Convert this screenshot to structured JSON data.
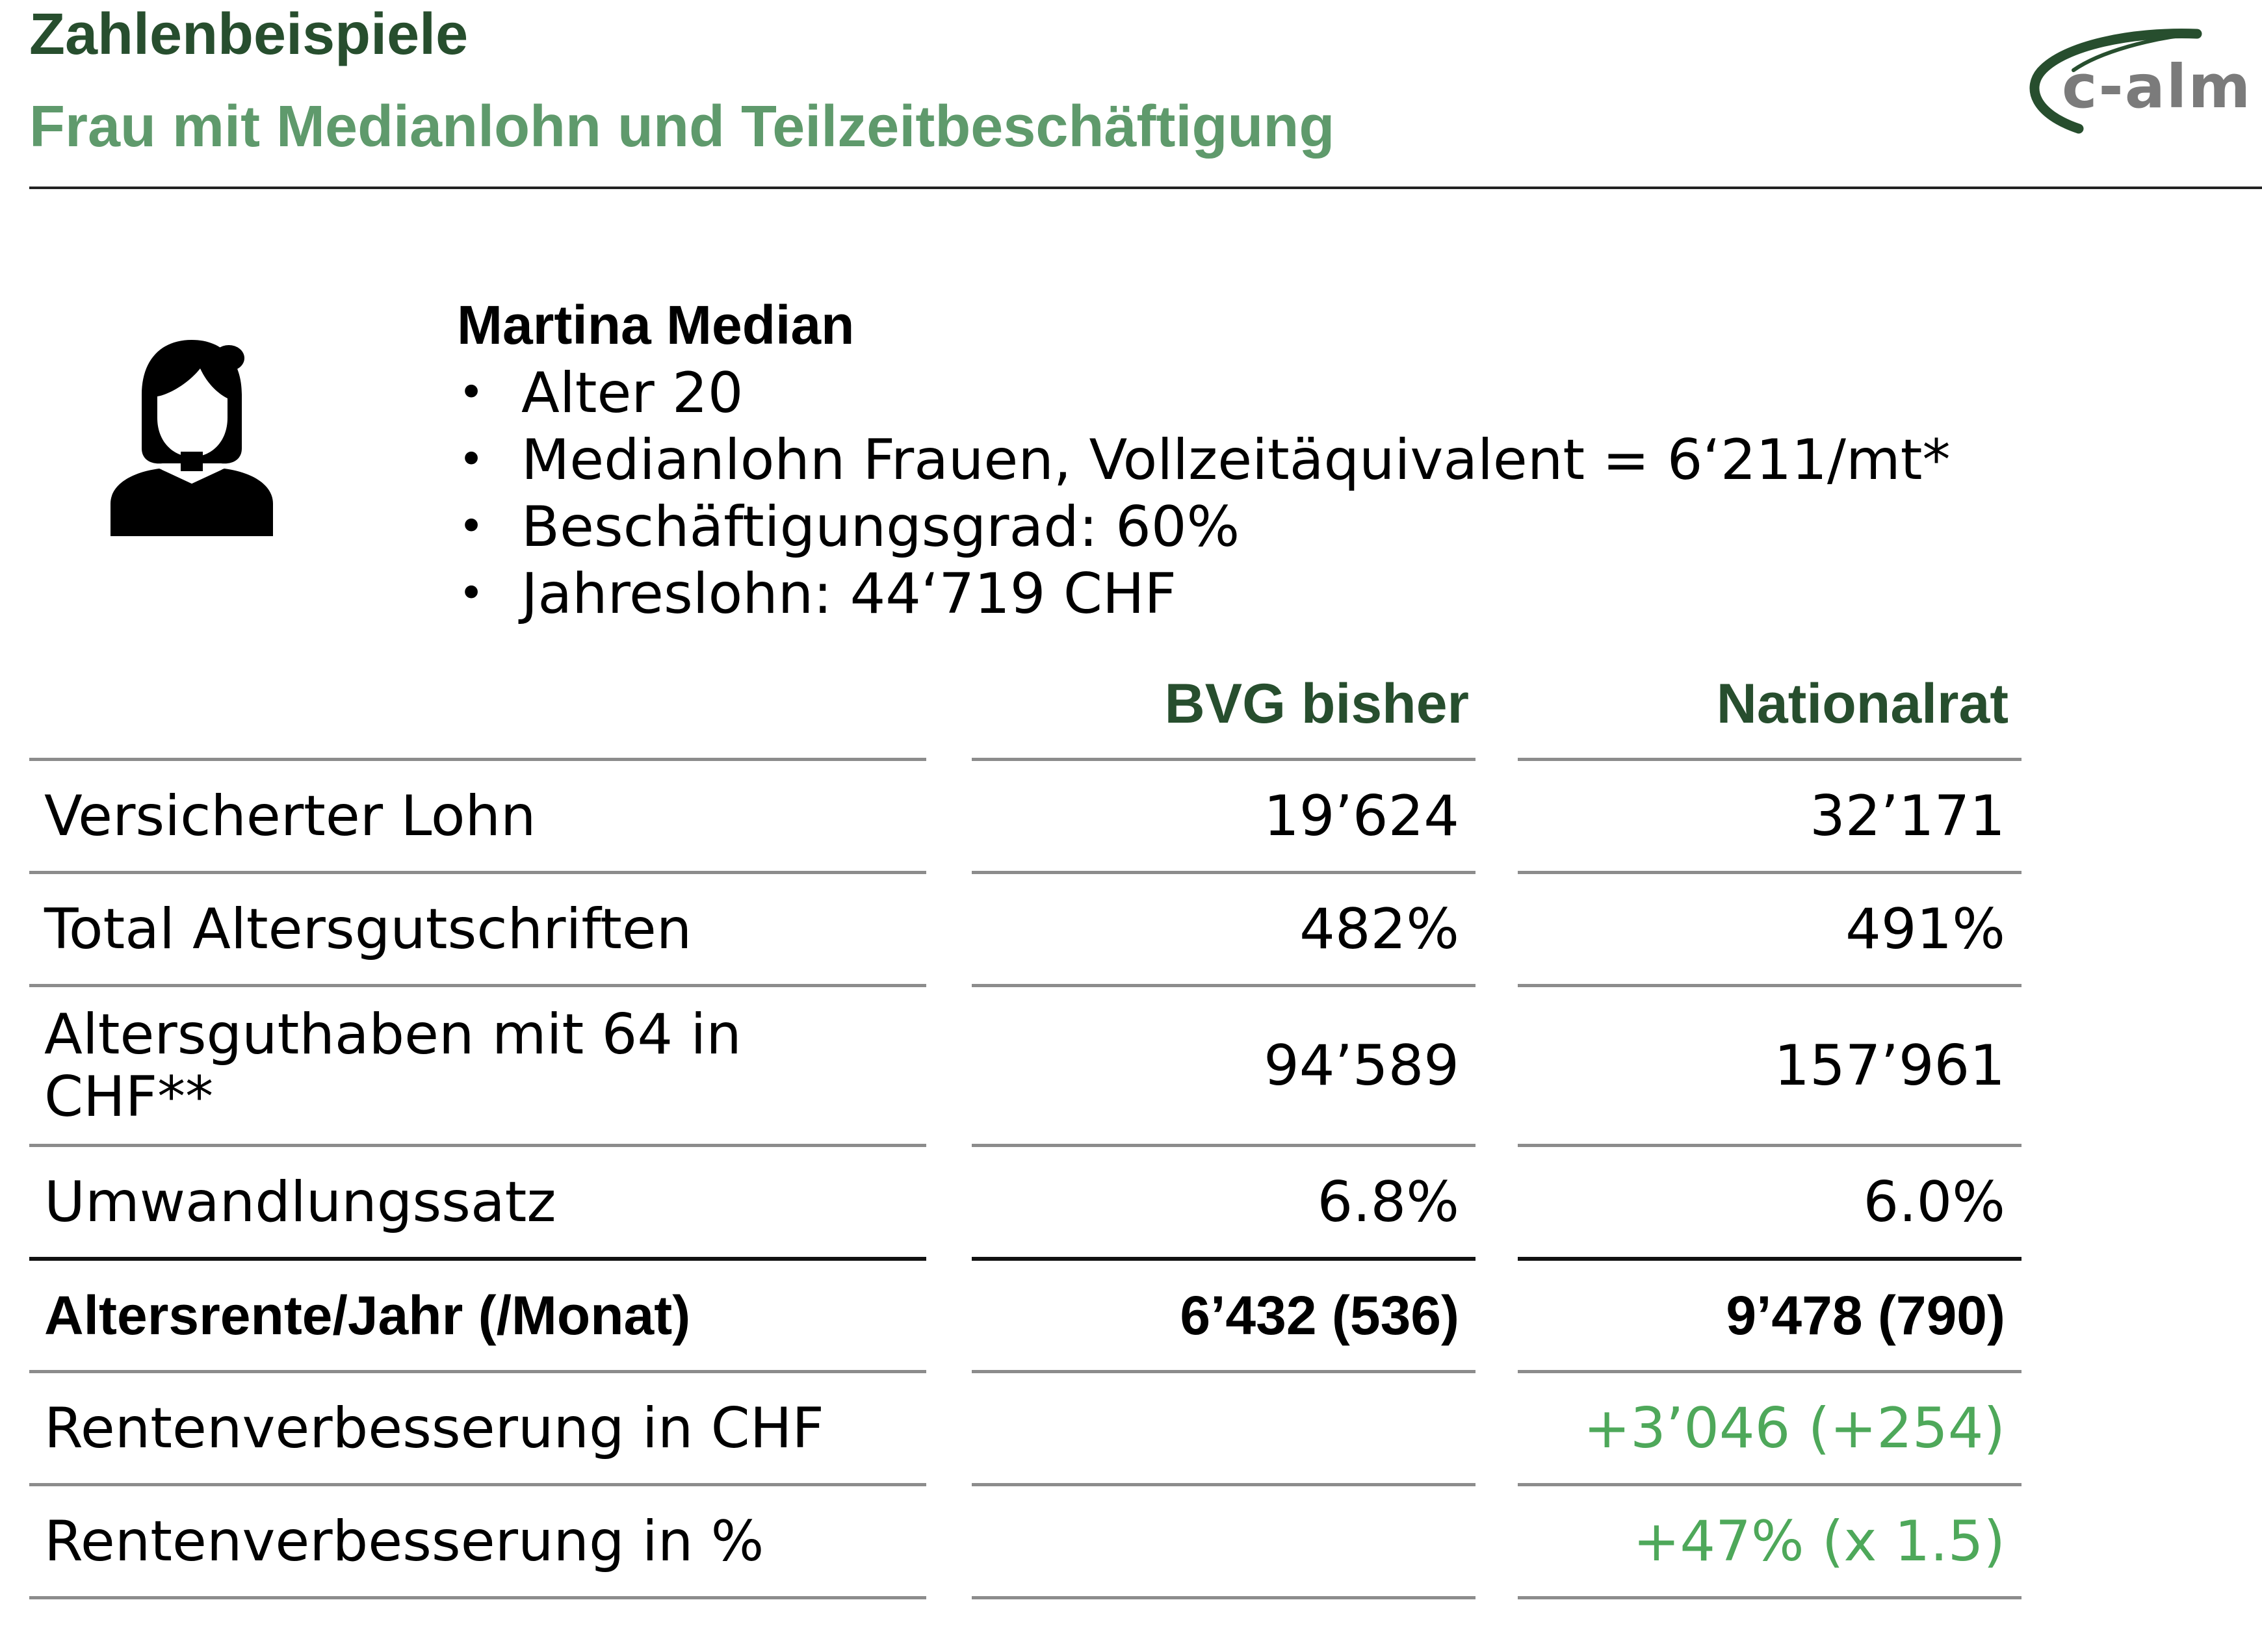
{
  "header": {
    "title": "Zahlenbeispiele",
    "subtitle": "Frau mit Medianlohn und Teilzeitbeschäftigung",
    "logo_text": "c-alm"
  },
  "profile": {
    "avatar_icon": "woman-avatar-icon",
    "name": "Martina Median",
    "bullets": [
      "Alter 20",
      "Medianlohn Frauen, Vollzeitäquivalent = 6‘211/mt*",
      "Beschäftigungsgrad: 60%",
      "Jahreslohn: 44‘719 CHF"
    ]
  },
  "table": {
    "columns": [
      "BVG bisher",
      "Nationalrat"
    ],
    "rows": [
      {
        "label": "Versicherter Lohn",
        "bisher": "19’624",
        "nationalrat": "32’171"
      },
      {
        "label": "Total Altersgutschriften",
        "bisher": "482%",
        "nationalrat": "491%"
      },
      {
        "label": "Altersguthaben mit 64 in CHF**",
        "bisher": "94’589",
        "nationalrat": "157’961"
      },
      {
        "label": "Umwandlungssatz",
        "bisher": "6.8%",
        "nationalrat": "6.0%"
      },
      {
        "label": "Altersrente/Jahr (/Monat)",
        "bisher": "6’432 (536)",
        "nationalrat": "9’478 (790)"
      },
      {
        "label": "Rentenverbesserung in CHF",
        "bisher": "",
        "nationalrat": "+3’046 (+254)"
      },
      {
        "label": "Rentenverbesserung in %",
        "bisher": "",
        "nationalrat": "+47% (x 1.5)"
      }
    ]
  },
  "colors": {
    "title": "#274e2e",
    "subtitle": "#5f9a6c",
    "positive": "#4ea85a",
    "logo_arc": "#274e2e",
    "logo_text": "#7b7b7b"
  }
}
